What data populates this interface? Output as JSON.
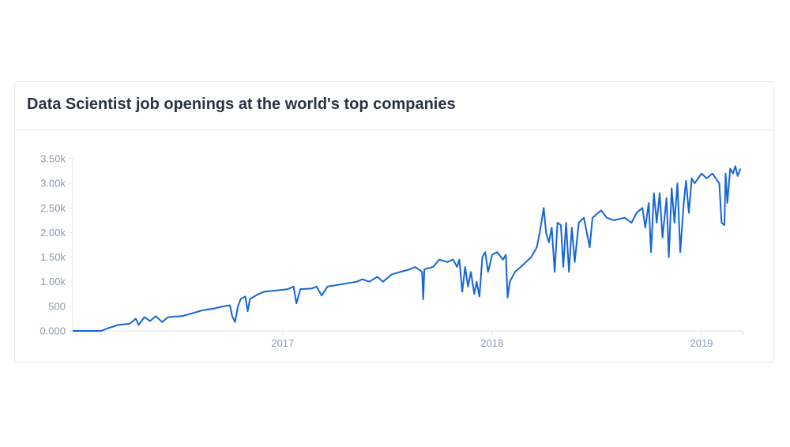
{
  "card": {
    "title": "Data Scientist job openings at the world's top companies"
  },
  "chart_data": {
    "type": "line",
    "title": "Data Scientist job openings at the world's top companies",
    "xlabel": "",
    "ylabel": "",
    "y_ticks": [
      "0.000",
      "500",
      "1.00k",
      "1.50k",
      "2.00k",
      "2.50k",
      "3.00k",
      "3.50k"
    ],
    "x_ticks": [
      "2017",
      "2018",
      "2019"
    ],
    "ylim": [
      0,
      3500
    ],
    "xlim": [
      "2016-01-01",
      "2019-03-15"
    ],
    "grid": false,
    "line_color": "#1565d8",
    "series": [
      {
        "points": [
          [
            "2016-01-01",
            0
          ],
          [
            "2016-02-20",
            0
          ],
          [
            "2016-03-01",
            50
          ],
          [
            "2016-03-20",
            120
          ],
          [
            "2016-04-10",
            150
          ],
          [
            "2016-04-20",
            250
          ],
          [
            "2016-04-25",
            120
          ],
          [
            "2016-05-05",
            280
          ],
          [
            "2016-05-15",
            200
          ],
          [
            "2016-05-25",
            300
          ],
          [
            "2016-06-05",
            180
          ],
          [
            "2016-06-15",
            280
          ],
          [
            "2016-06-25",
            290
          ],
          [
            "2016-07-10",
            300
          ],
          [
            "2016-07-25",
            350
          ],
          [
            "2016-08-15",
            420
          ],
          [
            "2016-09-01",
            450
          ],
          [
            "2016-09-20",
            500
          ],
          [
            "2016-10-01",
            520
          ],
          [
            "2016-10-05",
            300
          ],
          [
            "2016-10-10",
            180
          ],
          [
            "2016-10-15",
            500
          ],
          [
            "2016-10-20",
            650
          ],
          [
            "2016-10-28",
            700
          ],
          [
            "2016-11-01",
            400
          ],
          [
            "2016-11-05",
            650
          ],
          [
            "2016-11-20",
            750
          ],
          [
            "2016-12-01",
            800
          ],
          [
            "2016-12-20",
            820
          ],
          [
            "2017-01-10",
            850
          ],
          [
            "2017-01-20",
            900
          ],
          [
            "2017-01-25",
            560
          ],
          [
            "2017-02-01",
            850
          ],
          [
            "2017-02-20",
            860
          ],
          [
            "2017-03-01",
            900
          ],
          [
            "2017-03-10",
            720
          ],
          [
            "2017-03-20",
            900
          ],
          [
            "2017-04-15",
            950
          ],
          [
            "2017-05-10",
            1000
          ],
          [
            "2017-05-20",
            1050
          ],
          [
            "2017-06-01",
            1000
          ],
          [
            "2017-06-15",
            1100
          ],
          [
            "2017-06-25",
            1000
          ],
          [
            "2017-07-10",
            1150
          ],
          [
            "2017-07-25",
            1200
          ],
          [
            "2017-08-10",
            1250
          ],
          [
            "2017-08-20",
            1300
          ],
          [
            "2017-09-01",
            1200
          ],
          [
            "2017-09-03",
            640
          ],
          [
            "2017-09-05",
            1250
          ],
          [
            "2017-09-20",
            1300
          ],
          [
            "2017-10-01",
            1450
          ],
          [
            "2017-10-15",
            1400
          ],
          [
            "2017-10-25",
            1450
          ],
          [
            "2017-11-01",
            1300
          ],
          [
            "2017-11-05",
            1450
          ],
          [
            "2017-11-10",
            800
          ],
          [
            "2017-11-15",
            1300
          ],
          [
            "2017-11-20",
            900
          ],
          [
            "2017-11-25",
            1200
          ],
          [
            "2017-12-01",
            750
          ],
          [
            "2017-12-05",
            1000
          ],
          [
            "2017-12-10",
            700
          ],
          [
            "2017-12-15",
            1500
          ],
          [
            "2017-12-20",
            1600
          ],
          [
            "2017-12-25",
            1200
          ],
          [
            "2018-01-01",
            1550
          ],
          [
            "2018-01-10",
            1600
          ],
          [
            "2018-01-20",
            1450
          ],
          [
            "2018-01-25",
            1550
          ],
          [
            "2018-01-28",
            680
          ],
          [
            "2018-02-01",
            1000
          ],
          [
            "2018-02-10",
            1200
          ],
          [
            "2018-02-20",
            1300
          ],
          [
            "2018-03-01",
            1400
          ],
          [
            "2018-03-10",
            1500
          ],
          [
            "2018-03-20",
            1700
          ],
          [
            "2018-03-25",
            2000
          ],
          [
            "2018-04-01",
            2500
          ],
          [
            "2018-04-05",
            2000
          ],
          [
            "2018-04-10",
            1800
          ],
          [
            "2018-04-15",
            2100
          ],
          [
            "2018-04-20",
            1200
          ],
          [
            "2018-04-25",
            2200
          ],
          [
            "2018-05-01",
            2150
          ],
          [
            "2018-05-05",
            1300
          ],
          [
            "2018-05-10",
            2200
          ],
          [
            "2018-05-15",
            1200
          ],
          [
            "2018-05-20",
            2100
          ],
          [
            "2018-05-25",
            1400
          ],
          [
            "2018-06-01",
            2200
          ],
          [
            "2018-06-10",
            2300
          ],
          [
            "2018-06-20",
            1700
          ],
          [
            "2018-06-25",
            2300
          ],
          [
            "2018-07-10",
            2450
          ],
          [
            "2018-07-20",
            2300
          ],
          [
            "2018-08-01",
            2250
          ],
          [
            "2018-08-20",
            2300
          ],
          [
            "2018-09-01",
            2200
          ],
          [
            "2018-09-10",
            2400
          ],
          [
            "2018-09-20",
            2500
          ],
          [
            "2018-09-25",
            2100
          ],
          [
            "2018-10-01",
            2600
          ],
          [
            "2018-10-05",
            1600
          ],
          [
            "2018-10-10",
            2800
          ],
          [
            "2018-10-15",
            2200
          ],
          [
            "2018-10-20",
            2800
          ],
          [
            "2018-10-25",
            1900
          ],
          [
            "2018-11-01",
            2700
          ],
          [
            "2018-11-05",
            1500
          ],
          [
            "2018-11-10",
            2900
          ],
          [
            "2018-11-15",
            2200
          ],
          [
            "2018-11-20",
            3000
          ],
          [
            "2018-11-25",
            1600
          ],
          [
            "2018-12-01",
            2600
          ],
          [
            "2018-12-05",
            3050
          ],
          [
            "2018-12-10",
            2400
          ],
          [
            "2018-12-15",
            3100
          ],
          [
            "2018-12-20",
            3000
          ],
          [
            "2019-01-01",
            3200
          ],
          [
            "2019-01-10",
            3100
          ],
          [
            "2019-01-20",
            3200
          ],
          [
            "2019-02-01",
            3000
          ],
          [
            "2019-02-05",
            2200
          ],
          [
            "2019-02-10",
            2150
          ],
          [
            "2019-02-12",
            3200
          ],
          [
            "2019-02-15",
            2600
          ],
          [
            "2019-02-20",
            3300
          ],
          [
            "2019-02-25",
            3200
          ],
          [
            "2019-03-01",
            3350
          ],
          [
            "2019-03-05",
            3150
          ],
          [
            "2019-03-10",
            3300
          ]
        ]
      }
    ]
  }
}
